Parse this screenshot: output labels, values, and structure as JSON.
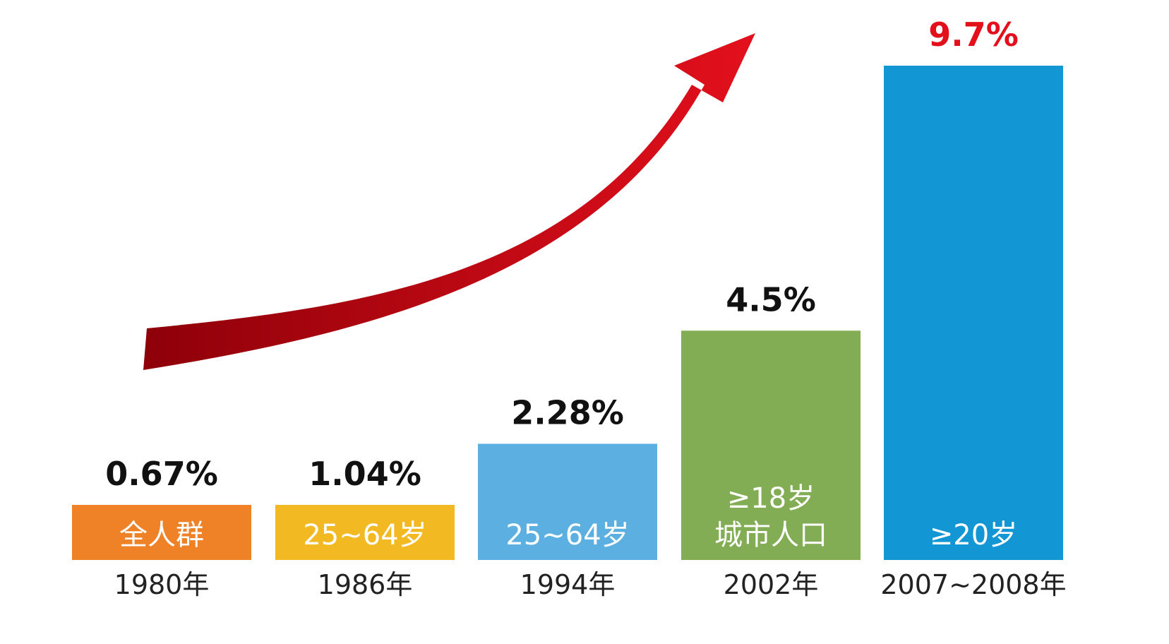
{
  "chart_data": {
    "type": "bar",
    "categories": [
      "1980年",
      "1986年",
      "1994年",
      "2002年",
      "2007~2008年"
    ],
    "values": [
      0.67,
      1.04,
      2.28,
      4.5,
      9.7
    ],
    "value_labels": [
      "0.67%",
      "1.04%",
      "2.28%",
      "4.5%",
      "9.7%"
    ],
    "bar_labels": [
      [
        "全人群"
      ],
      [
        "25~64岁"
      ],
      [
        "25~64岁"
      ],
      [
        "≥18岁",
        "城市人口"
      ],
      [
        "≥20岁"
      ]
    ],
    "colors": [
      "#ef8127",
      "#f3b923",
      "#5cb0e1",
      "#83ad55",
      "#1396d4"
    ],
    "value_label_colors": [
      "#111111",
      "#111111",
      "#111111",
      "#111111",
      "#e3101c"
    ],
    "arrow_color_start": "#8e0009",
    "arrow_color_end": "#e3101c",
    "title": "",
    "xlabel": "",
    "ylabel": "",
    "ylim": [
      0,
      10
    ],
    "grid": false,
    "legend": false
  }
}
